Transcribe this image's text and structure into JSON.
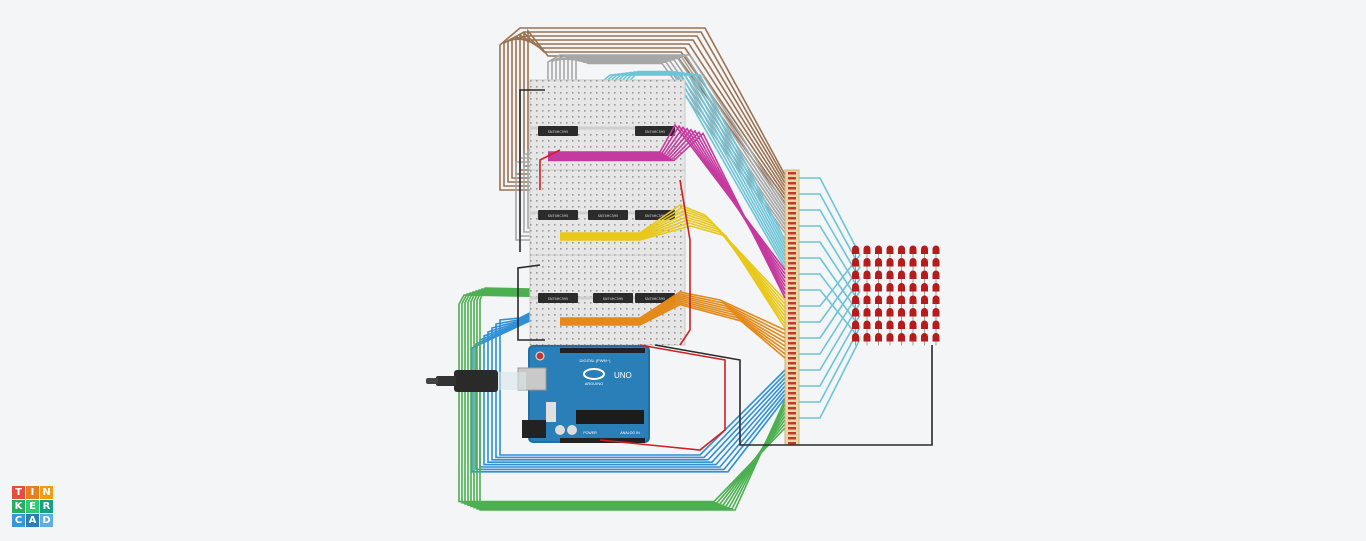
{
  "app": {
    "name": "Tinkercad"
  },
  "logo": {
    "letters": [
      "T",
      "I",
      "N",
      "K",
      "E",
      "R",
      "C",
      "A",
      "D"
    ],
    "colors": [
      "#e74c3c",
      "#e67e22",
      "#f39c12",
      "#27ae60",
      "#2ecc71",
      "#16a085",
      "#3498db",
      "#2980b9",
      "#5dade2"
    ]
  },
  "arduino": {
    "brand": "ARDUINO",
    "model": "UNO",
    "header_digital": "DIGITAL (PWM~)",
    "header_power": "POWER",
    "header_analog": "ANALOG IN"
  },
  "chips": [
    "SN74HC595",
    "SN74HC595",
    "SN74HC595",
    "SN74HC595",
    "SN74HC595",
    "SN74HC595",
    "SN74HC595",
    "SN74HC595"
  ],
  "led_matrix": {
    "rows": 8,
    "cols": 8,
    "color": "#b71c1c"
  },
  "wire_colors": {
    "brown": "#9b7250",
    "gray": "#a6a6a6",
    "cyan": "#6cc4d6",
    "magenta": "#c43a9e",
    "yellow": "#e8c81a",
    "orange": "#e38a1a",
    "green": "#4caf50",
    "blue": "#2f8fd8",
    "red": "#d02020",
    "black": "#2a2a2a"
  }
}
